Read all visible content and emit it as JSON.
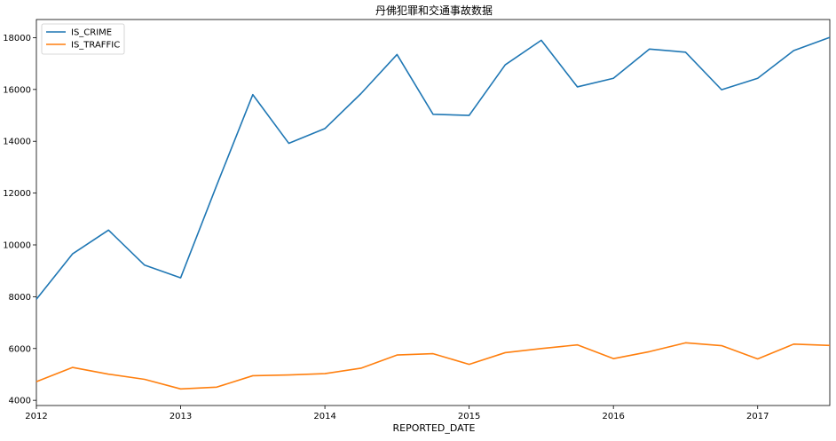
{
  "chart_data": {
    "type": "line",
    "title": "丹佛犯罪和交通事故数据",
    "xlabel": "REPORTED_DATE",
    "ylabel": "",
    "legend_position": "top-left",
    "grid": false,
    "x": [
      "2012-01",
      "2012-04",
      "2012-07",
      "2012-10",
      "2013-01",
      "2013-04",
      "2013-07",
      "2013-10",
      "2014-01",
      "2014-04",
      "2014-07",
      "2014-10",
      "2015-01",
      "2015-04",
      "2015-07",
      "2015-10",
      "2016-01",
      "2016-04",
      "2016-07",
      "2016-10",
      "2017-01",
      "2017-04",
      "2017-07"
    ],
    "xlim": [
      "2012-01",
      "2017-07"
    ],
    "xticks": [
      "2012-01",
      "2013-01",
      "2014-01",
      "2015-01",
      "2016-01",
      "2017-01"
    ],
    "xtick_labels": [
      "2012",
      "2013",
      "2014",
      "2015",
      "2016",
      "2017"
    ],
    "ylim": [
      3800,
      18700
    ],
    "yticks": [
      4000,
      6000,
      8000,
      10000,
      12000,
      14000,
      16000,
      18000
    ],
    "series": [
      {
        "name": "IS_CRIME",
        "color": "#1f77b4",
        "values": [
          7900,
          9650,
          10570,
          9220,
          8730,
          12300,
          15800,
          13920,
          14490,
          15840,
          17350,
          15040,
          15000,
          16950,
          17900,
          16100,
          16430,
          17560,
          17440,
          15990,
          16430,
          17500,
          18010
        ]
      },
      {
        "name": "IS_TRAFFIC",
        "color": "#ff7f0e",
        "values": [
          4720,
          5270,
          5010,
          4810,
          4440,
          4510,
          4950,
          4980,
          5030,
          5240,
          5750,
          5800,
          5390,
          5840,
          6000,
          6140,
          5610,
          5880,
          6220,
          6110,
          5600,
          6170,
          6120
        ]
      }
    ]
  }
}
